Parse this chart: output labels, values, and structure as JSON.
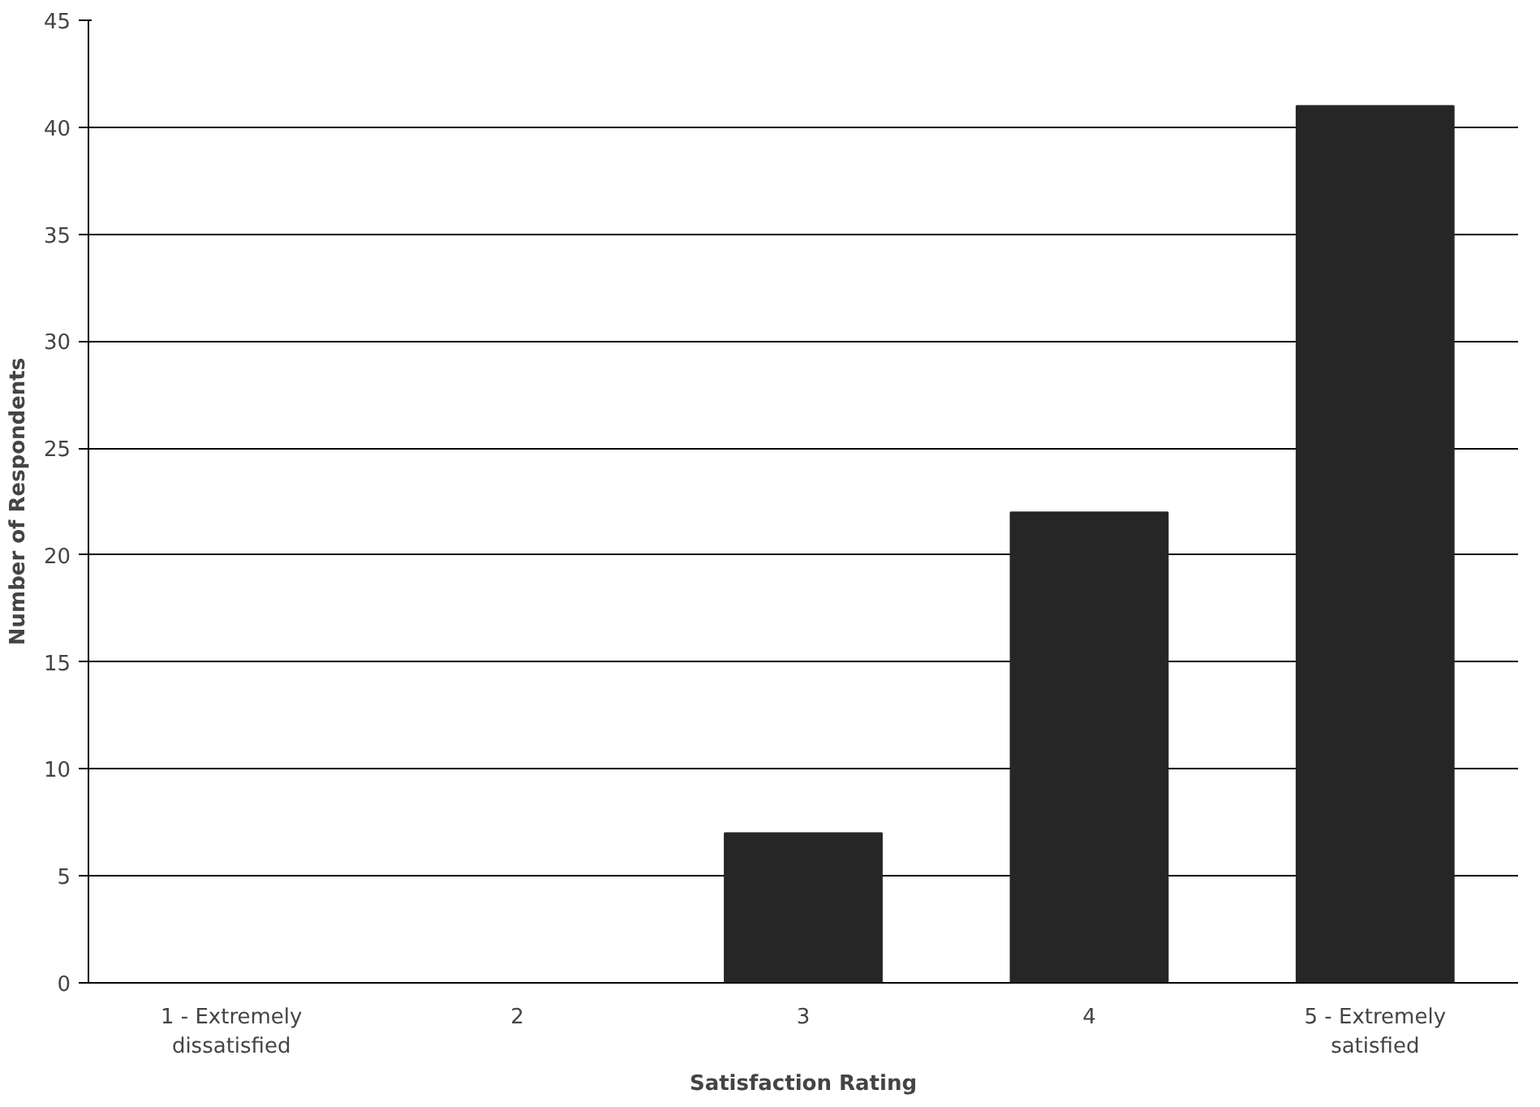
{
  "chart_data": {
    "type": "bar",
    "xlabel": "Satisfaction Rating",
    "ylabel": "Number of Respondents",
    "categories": [
      "1 - Extremely dissatisfied",
      "2",
      "3",
      "4",
      "5 - Extremely satisfied"
    ],
    "values": [
      0,
      0,
      7,
      22,
      41
    ],
    "color": "#262626",
    "ylim": [
      0,
      45
    ],
    "yticks": [
      0,
      5,
      10,
      15,
      20,
      25,
      30,
      35,
      40,
      45
    ],
    "grid": "y"
  }
}
